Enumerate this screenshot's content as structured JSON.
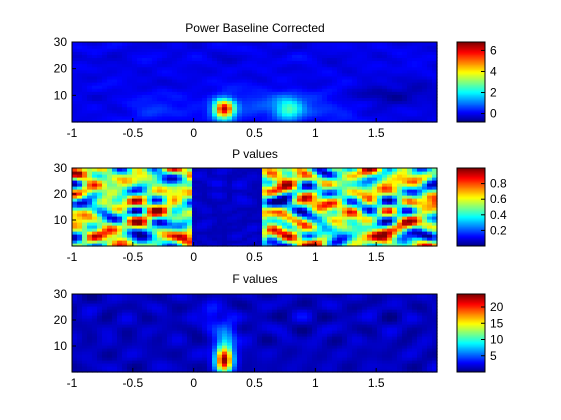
{
  "chart_data": [
    {
      "type": "heatmap",
      "title": "Power Baseline Corrected",
      "xlabel": "",
      "ylabel": "",
      "xlim": [
        -1,
        2
      ],
      "ylim": [
        0,
        30
      ],
      "xticks": [
        -1,
        -0.5,
        0,
        0.5,
        1,
        1.5
      ],
      "xtick_labels": [
        "-1",
        "-0.5",
        "0",
        "0.5",
        "1",
        "1.5"
      ],
      "yticks": [
        10,
        20,
        30
      ],
      "ytick_labels": [
        "10",
        "20",
        "30"
      ],
      "colormap": "jet",
      "clim": [
        -0.8,
        6.8
      ],
      "colorbar_ticks": [
        0,
        2,
        4,
        6
      ],
      "colorbar_labels": [
        "0",
        "2",
        "4",
        "6"
      ],
      "base_value": 0,
      "texture_amplitude": 0.25,
      "blobs": [
        {
          "t": 0.25,
          "f": 5,
          "st": 0.06,
          "sf": 2.5,
          "v": 6.3
        },
        {
          "t": 0.78,
          "f": 5,
          "st": 0.08,
          "sf": 3,
          "v": 2.2
        },
        {
          "t": 0.55,
          "f": 7,
          "st": 0.25,
          "sf": 4,
          "v": 0.6
        },
        {
          "t": 1.1,
          "f": 6,
          "st": 0.2,
          "sf": 4,
          "v": 0.5
        },
        {
          "t": -0.3,
          "f": 5,
          "st": 0.2,
          "sf": 4,
          "v": 0.4
        },
        {
          "t": 1.6,
          "f": 10,
          "st": 0.3,
          "sf": 3,
          "v": -0.5
        }
      ]
    },
    {
      "type": "heatmap",
      "title": "P values",
      "xlabel": "",
      "ylabel": "",
      "xlim": [
        -1,
        2
      ],
      "ylim": [
        0,
        30
      ],
      "xticks": [
        -1,
        -0.5,
        0,
        0.5,
        1,
        1.5
      ],
      "xtick_labels": [
        "-1",
        "-0.5",
        "0",
        "0.5",
        "1",
        "1.5"
      ],
      "yticks": [
        10,
        20,
        30
      ],
      "ytick_labels": [
        "10",
        "20",
        "30"
      ],
      "colormap": "jet",
      "clim": [
        0,
        1
      ],
      "colorbar_ticks": [
        0.2,
        0.4,
        0.6,
        0.8
      ],
      "colorbar_labels": [
        "0.2",
        "0.4",
        "0.6",
        "0.8"
      ],
      "base_value": 0.5,
      "texture_amplitude": 0.55,
      "low_region": {
        "t0": 0.0,
        "t1": 0.55,
        "f0": 0,
        "f1": 30,
        "v": 0.05
      },
      "blobs": []
    },
    {
      "type": "heatmap",
      "title": "F values",
      "xlabel": "",
      "ylabel": "",
      "xlim": [
        -1,
        2
      ],
      "ylim": [
        0,
        30
      ],
      "xticks": [
        -1,
        -0.5,
        0,
        0.5,
        1,
        1.5
      ],
      "xtick_labels": [
        "-1",
        "-0.5",
        "0",
        "0.5",
        "1",
        "1.5"
      ],
      "yticks": [
        10,
        20,
        30
      ],
      "ytick_labels": [
        "10",
        "20",
        "30"
      ],
      "colormap": "jet",
      "clim": [
        0,
        24
      ],
      "colorbar_ticks": [
        5,
        10,
        15,
        20
      ],
      "colorbar_labels": [
        "5",
        "10",
        "15",
        "20"
      ],
      "base_value": 1.5,
      "texture_amplitude": 1.2,
      "blobs": [
        {
          "t": 0.25,
          "f": 5,
          "st": 0.05,
          "sf": 3.5,
          "v": 22
        },
        {
          "t": 0.27,
          "f": 14,
          "st": 0.06,
          "sf": 4,
          "v": 5
        },
        {
          "t": 0.15,
          "f": 22,
          "st": 0.05,
          "sf": 3,
          "v": 3
        }
      ]
    }
  ]
}
